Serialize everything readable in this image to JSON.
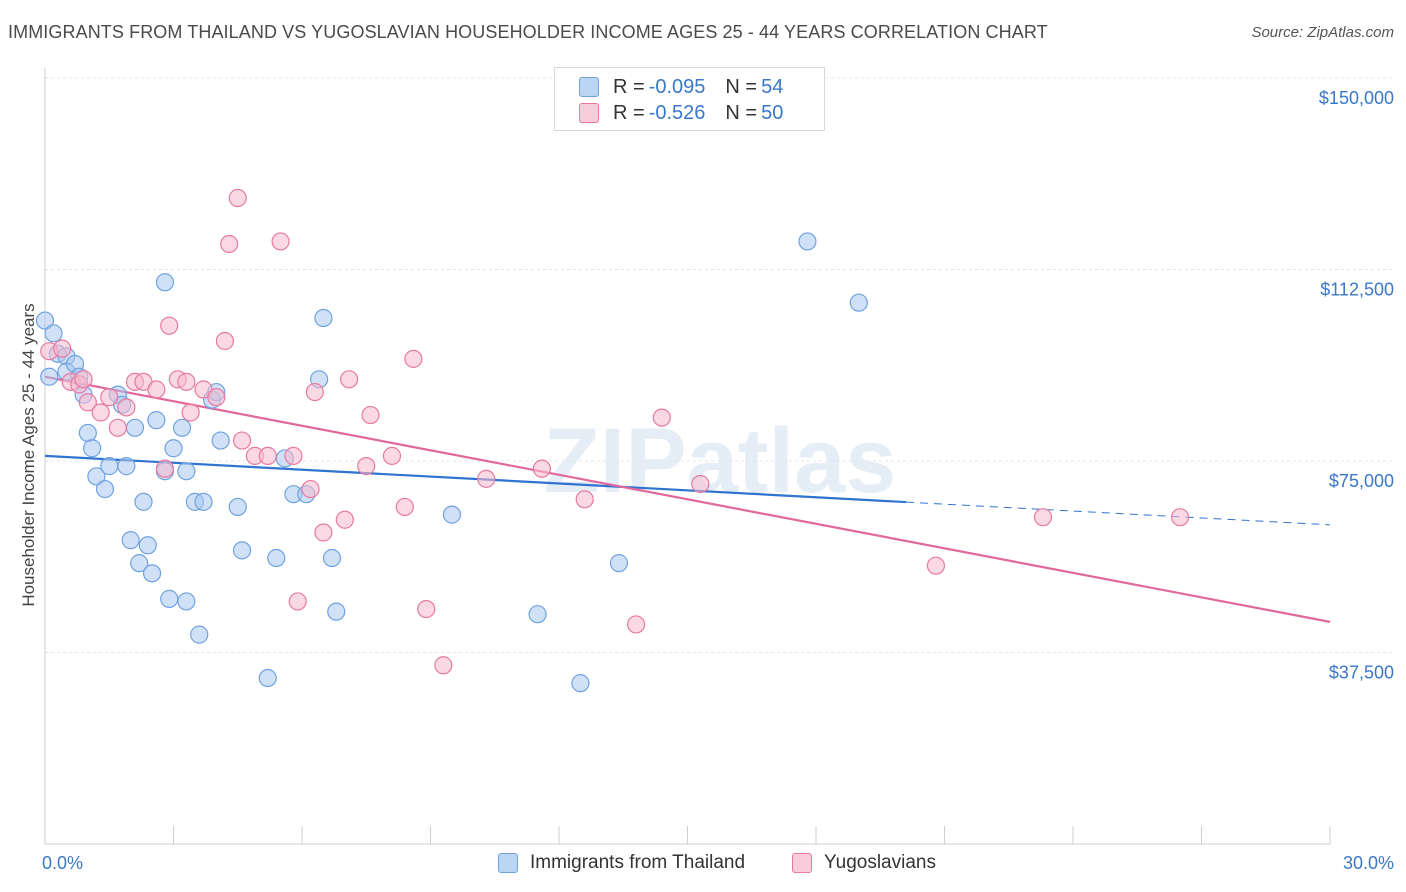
{
  "title": "IMMIGRANTS FROM THAILAND VS YUGOSLAVIAN HOUSEHOLDER INCOME AGES 25 - 44 YEARS CORRELATION CHART",
  "source": "Source: ZipAtlas.com",
  "watermark": "ZIPatlas",
  "legend": {
    "rows": [
      {
        "r_label": "R = ",
        "r_value": "-0.095",
        "n_label": "N = ",
        "n_value": "54",
        "color": "#a9c8f0"
      },
      {
        "r_label": "R = ",
        "r_value": "-0.526",
        "n_label": "N = ",
        "n_value": "50",
        "color": "#f7b9ce"
      }
    ]
  },
  "bottom_legend": [
    {
      "label": "Immigrants from Thailand",
      "color": "#a9c8f0"
    },
    {
      "label": "Yugoslavians",
      "color": "#f7b9ce"
    }
  ],
  "chart_data": {
    "type": "scatter",
    "ylabel": "Householder Income Ages 25 - 44 years",
    "xlim": [
      0,
      30
    ],
    "ylim": [
      0,
      150000
    ],
    "y_ticks": [
      {
        "value": 150000,
        "label": "$150,000"
      },
      {
        "value": 112500,
        "label": "$112,500"
      },
      {
        "value": 75000,
        "label": "$75,000"
      },
      {
        "value": 37500,
        "label": "$37,500"
      }
    ],
    "x_tick_labels": {
      "min": "0.0%",
      "max": "30.0%"
    },
    "grid": true,
    "series": [
      {
        "name": "Immigrants from Thailand",
        "color": "#6fa3e0",
        "fill": "#a9c8f0",
        "trend": {
          "x0": 0,
          "y0": 76000,
          "x1": 30,
          "y1": 62500,
          "solid_until": 20.1
        },
        "points": [
          [
            0.0,
            102500
          ],
          [
            0.2,
            100000
          ],
          [
            0.1,
            91500
          ],
          [
            0.3,
            96000
          ],
          [
            0.5,
            95500
          ],
          [
            0.5,
            92500
          ],
          [
            0.7,
            94000
          ],
          [
            0.8,
            91500
          ],
          [
            0.9,
            88000
          ],
          [
            1.0,
            80500
          ],
          [
            1.1,
            77500
          ],
          [
            1.2,
            72000
          ],
          [
            1.4,
            69500
          ],
          [
            1.5,
            74000
          ],
          [
            1.7,
            88000
          ],
          [
            1.8,
            86000
          ],
          [
            1.9,
            74000
          ],
          [
            2.0,
            59500
          ],
          [
            2.1,
            81500
          ],
          [
            2.2,
            55000
          ],
          [
            2.3,
            67000
          ],
          [
            2.4,
            58500
          ],
          [
            2.5,
            53000
          ],
          [
            2.6,
            83000
          ],
          [
            2.8,
            73000
          ],
          [
            2.8,
            110000
          ],
          [
            2.9,
            48000
          ],
          [
            3.0,
            77500
          ],
          [
            3.2,
            81500
          ],
          [
            3.3,
            47500
          ],
          [
            3.3,
            73000
          ],
          [
            3.5,
            67000
          ],
          [
            3.6,
            41000
          ],
          [
            3.7,
            67000
          ],
          [
            3.9,
            87000
          ],
          [
            4.0,
            88500
          ],
          [
            4.1,
            79000
          ],
          [
            4.5,
            66000
          ],
          [
            4.6,
            57500
          ],
          [
            5.2,
            32500
          ],
          [
            5.4,
            56000
          ],
          [
            5.6,
            75500
          ],
          [
            5.8,
            68500
          ],
          [
            6.1,
            68500
          ],
          [
            6.4,
            91000
          ],
          [
            6.5,
            103000
          ],
          [
            6.7,
            56000
          ],
          [
            6.8,
            45500
          ],
          [
            9.5,
            64500
          ],
          [
            11.5,
            45000
          ],
          [
            12.5,
            31500
          ],
          [
            13.4,
            55000
          ],
          [
            17.8,
            118000
          ],
          [
            19.0,
            106000
          ]
        ]
      },
      {
        "name": "Yugoslavians",
        "color": "#e87aa0",
        "fill": "#f7b9ce",
        "trend": {
          "x0": 0,
          "y0": 91500,
          "x1": 30,
          "y1": 43500
        },
        "points": [
          [
            0.1,
            96500
          ],
          [
            0.4,
            97000
          ],
          [
            0.6,
            90500
          ],
          [
            0.8,
            90000
          ],
          [
            1.0,
            86500
          ],
          [
            1.3,
            84500
          ],
          [
            1.5,
            87500
          ],
          [
            1.7,
            81500
          ],
          [
            1.9,
            85500
          ],
          [
            2.1,
            90500
          ],
          [
            2.3,
            90500
          ],
          [
            2.6,
            89000
          ],
          [
            2.8,
            73500
          ],
          [
            2.9,
            101500
          ],
          [
            3.1,
            91000
          ],
          [
            3.3,
            90500
          ],
          [
            3.4,
            84500
          ],
          [
            3.7,
            89000
          ],
          [
            4.0,
            87500
          ],
          [
            4.2,
            98500
          ],
          [
            4.3,
            117500
          ],
          [
            4.5,
            126500
          ],
          [
            4.6,
            79000
          ],
          [
            4.9,
            76000
          ],
          [
            5.2,
            76000
          ],
          [
            5.5,
            118000
          ],
          [
            5.8,
            76000
          ],
          [
            5.9,
            47500
          ],
          [
            6.2,
            69500
          ],
          [
            6.3,
            88500
          ],
          [
            6.5,
            61000
          ],
          [
            7.0,
            63500
          ],
          [
            7.1,
            91000
          ],
          [
            7.5,
            74000
          ],
          [
            7.6,
            84000
          ],
          [
            8.1,
            76000
          ],
          [
            8.6,
            95000
          ],
          [
            8.4,
            66000
          ],
          [
            8.9,
            46000
          ],
          [
            9.3,
            35000
          ],
          [
            10.3,
            71500
          ],
          [
            11.6,
            73500
          ],
          [
            12.6,
            67500
          ],
          [
            13.8,
            43000
          ],
          [
            14.4,
            83500
          ],
          [
            15.3,
            70500
          ],
          [
            20.8,
            54500
          ],
          [
            23.3,
            64000
          ],
          [
            26.5,
            64000
          ],
          [
            0.9,
            91000
          ]
        ]
      }
    ]
  }
}
